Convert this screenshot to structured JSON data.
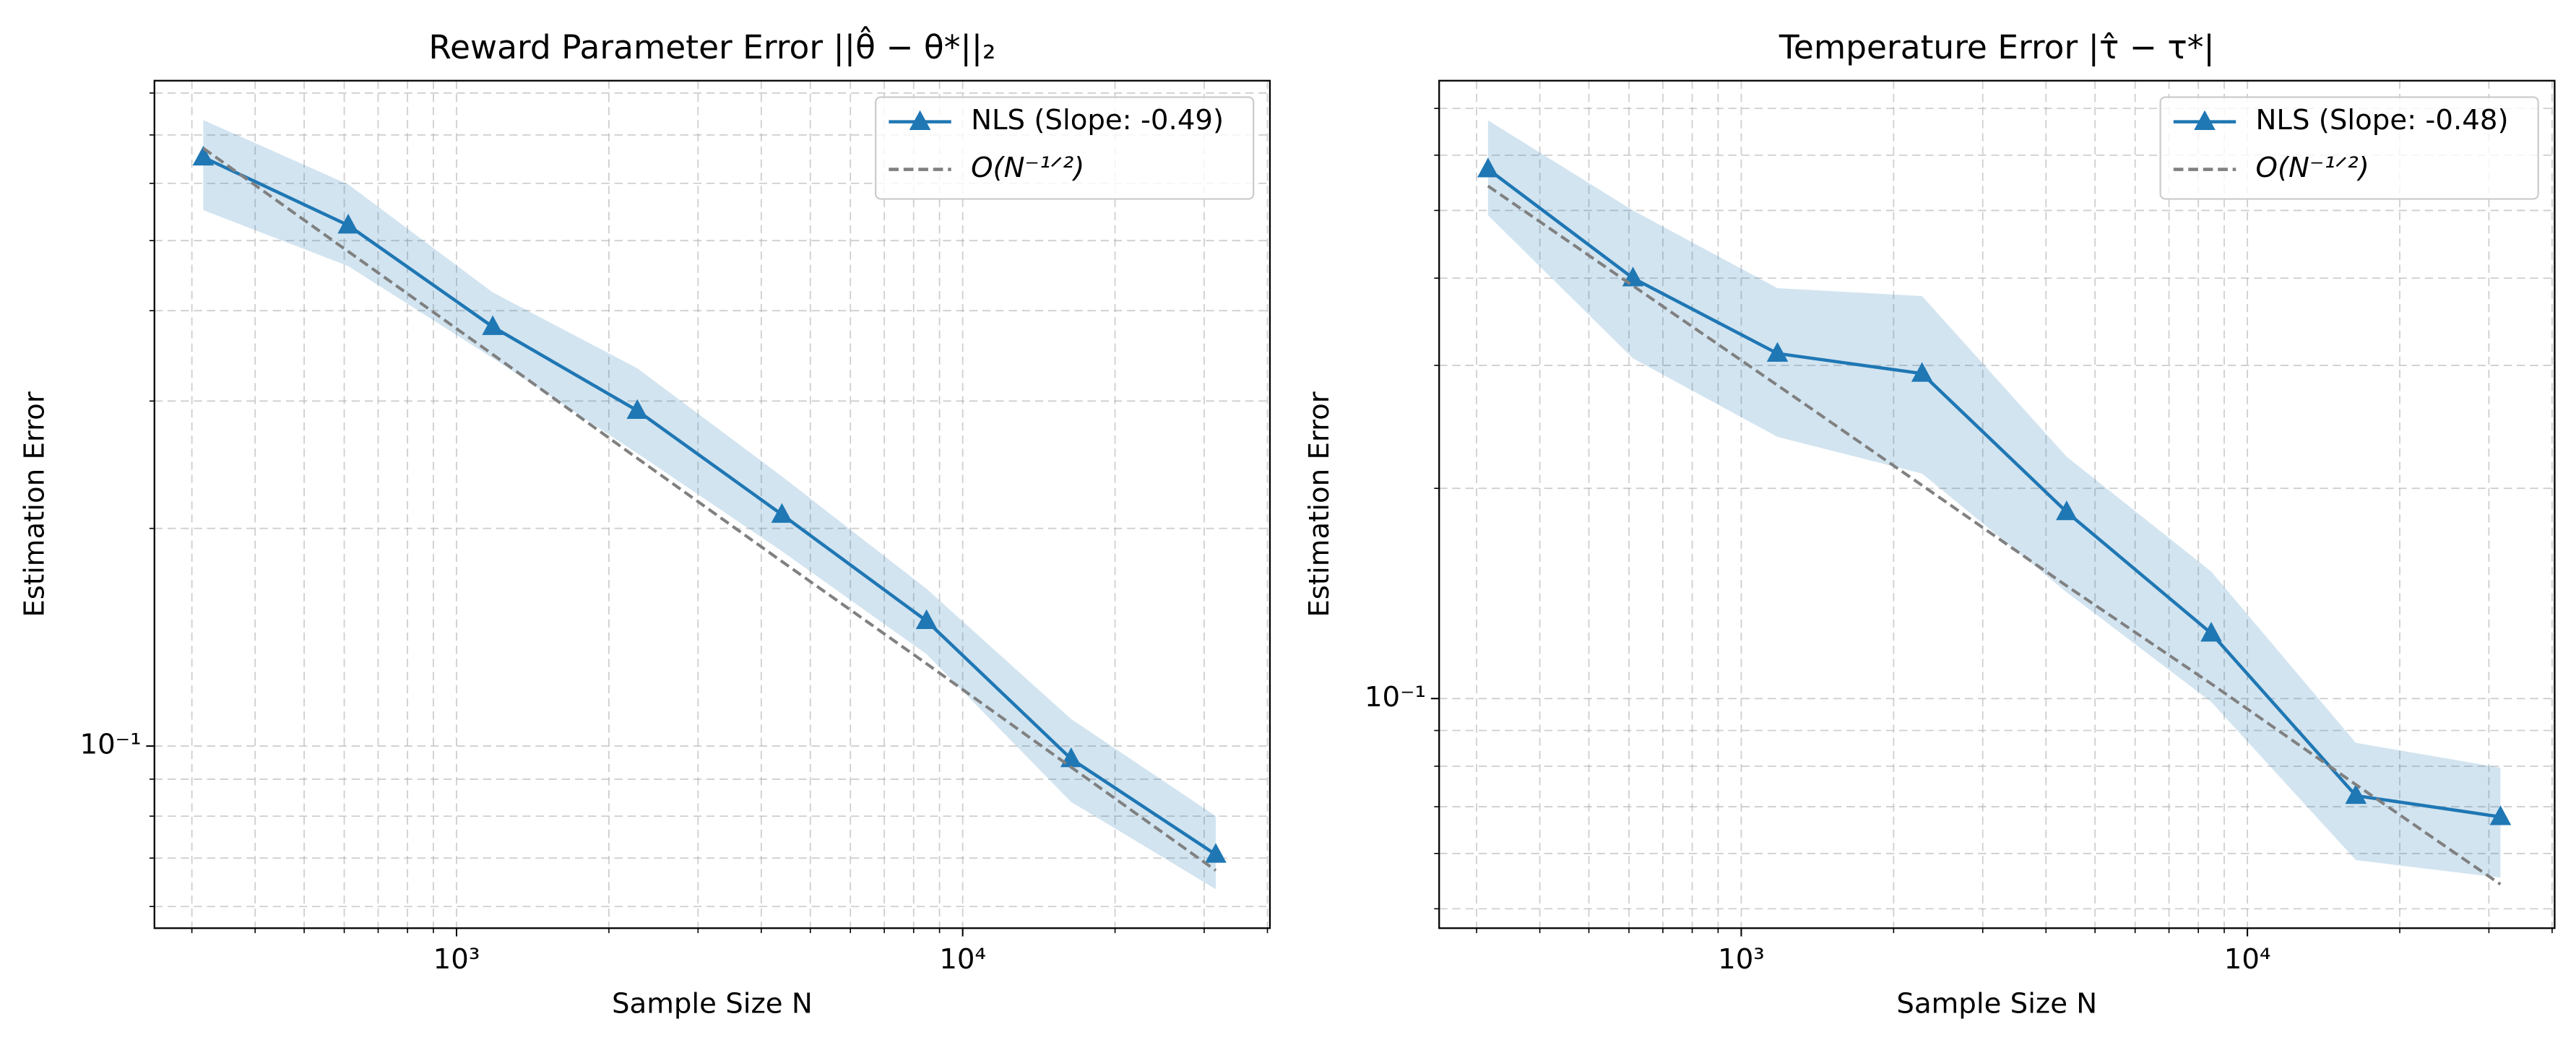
{
  "chart_data": [
    {
      "type": "line",
      "title": "Reward Parameter Error ||θ̂ − θ*||₂",
      "xlabel": "Sample Size N",
      "ylabel": "Estimation Error",
      "log_x": true,
      "log_y": true,
      "grid": true,
      "legend": "upper right",
      "x": [
        316,
        611,
        1179,
        2276,
        4394,
        8483,
        16379,
        31623
      ],
      "xlim": [
        253,
        40460
      ],
      "ylim": [
        0.056,
        0.832
      ],
      "xticks": [
        {
          "value": 1000,
          "label": "10³"
        },
        {
          "value": 10000,
          "label": "10⁴"
        }
      ],
      "xminor": [
        300,
        400,
        500,
        600,
        700,
        800,
        900,
        2000,
        3000,
        4000,
        5000,
        6000,
        7000,
        8000,
        9000,
        20000,
        30000,
        40000
      ],
      "yticks": [
        {
          "value": 0.1,
          "label": "10⁻¹"
        }
      ],
      "yminor": [
        0.06,
        0.07,
        0.08,
        0.09,
        0.2,
        0.3,
        0.4,
        0.5,
        0.6,
        0.7,
        0.8
      ],
      "series": [
        {
          "name": "NLS (Slope: -0.49)",
          "color": "#1f77b4",
          "marker": "triangle",
          "values": [
            0.652,
            0.525,
            0.38,
            0.291,
            0.209,
            0.149,
            0.096,
            0.0708
          ],
          "upper": [
            0.734,
            0.598,
            0.424,
            0.333,
            0.236,
            0.165,
            0.109,
            0.08
          ],
          "lower": [
            0.551,
            0.461,
            0.344,
            0.254,
            0.186,
            0.134,
            0.0837,
            0.0634
          ]
        },
        {
          "name": "O(N⁻¹ᐟ²)",
          "color": "#808080",
          "dashed": true,
          "values": [
            0.671,
            0.483,
            0.348,
            0.25,
            0.18,
            0.13,
            0.0935,
            0.0673
          ]
        }
      ]
    },
    {
      "type": "line",
      "title": "Temperature Error |τ̂ − τ*|",
      "xlabel": "Sample Size N",
      "ylabel": "Estimation Error",
      "log_x": true,
      "log_y": true,
      "grid": true,
      "legend": "upper right",
      "x": [
        316,
        611,
        1179,
        2276,
        4394,
        8483,
        16379,
        31623
      ],
      "xlim": [
        253,
        40460
      ],
      "ylim": [
        0.0469,
        0.767
      ],
      "xticks": [
        {
          "value": 1000,
          "label": "10³"
        },
        {
          "value": 10000,
          "label": "10⁴"
        }
      ],
      "xminor": [
        300,
        400,
        500,
        600,
        700,
        800,
        900,
        2000,
        3000,
        4000,
        5000,
        6000,
        7000,
        8000,
        9000,
        20000,
        30000,
        40000
      ],
      "yticks": [
        {
          "value": 0.1,
          "label": "10⁻¹"
        }
      ],
      "yminor": [
        0.05,
        0.06,
        0.07,
        0.08,
        0.09,
        0.2,
        0.3,
        0.4,
        0.5,
        0.6,
        0.7
      ],
      "series": [
        {
          "name": "NLS (Slope: -0.48)",
          "color": "#1f77b4",
          "marker": "triangle",
          "values": [
            0.573,
            0.4,
            0.312,
            0.292,
            0.185,
            0.124,
            0.0726,
            0.0677
          ],
          "upper": [
            0.673,
            0.5,
            0.387,
            0.377,
            0.222,
            0.152,
            0.0864,
            0.0796
          ],
          "lower": [
            0.492,
            0.307,
            0.237,
            0.21,
            0.142,
            0.0989,
            0.0587,
            0.0554
          ]
        },
        {
          "name": "O(N⁻¹ᐟ²)",
          "color": "#808080",
          "dashed": true,
          "values": [
            0.542,
            0.39,
            0.281,
            0.202,
            0.145,
            0.105,
            0.0753,
            0.0542
          ]
        }
      ]
    }
  ]
}
